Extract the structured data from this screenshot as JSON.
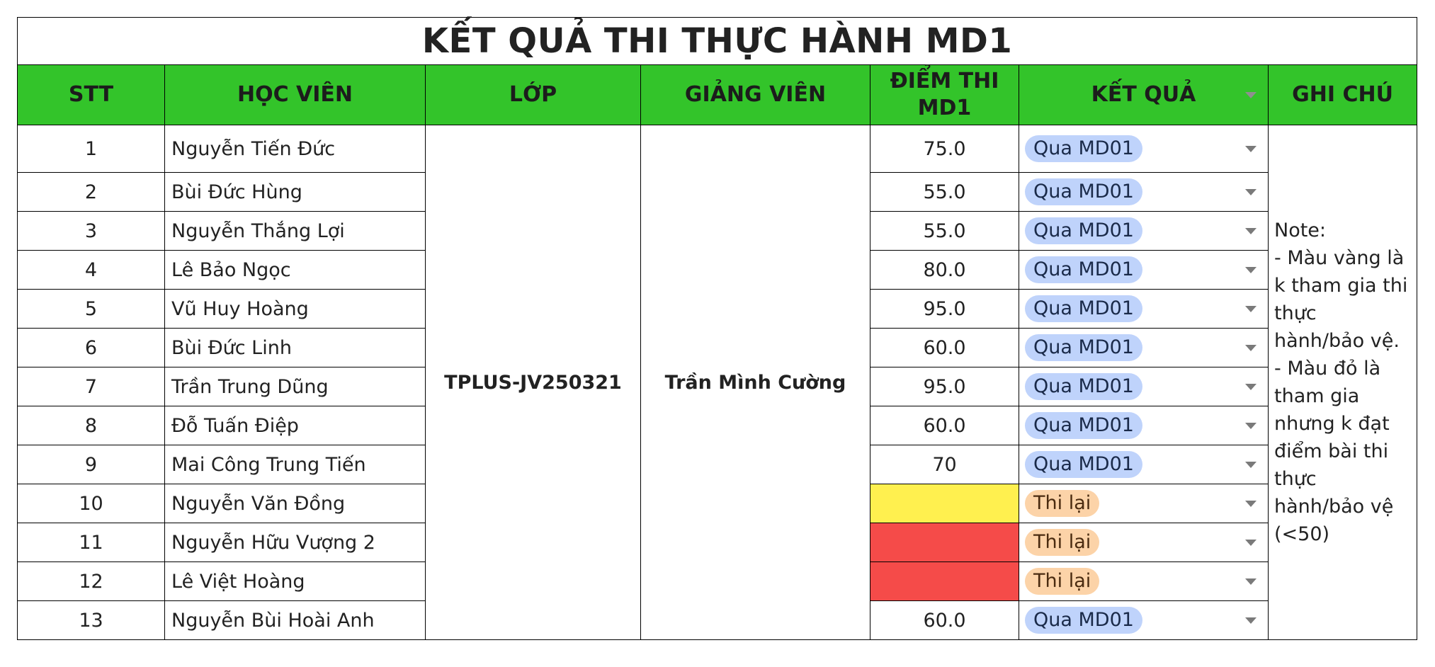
{
  "title": "KẾT QUẢ THI THỰC HÀNH MD1",
  "headers": {
    "stt": "STT",
    "student": "HỌC VIÊN",
    "class": "LỚP",
    "lecturer": "GIẢNG VIÊN",
    "score_line1": "ĐIỂM THI",
    "score_line2": "MD1",
    "result": "KẾT QUẢ",
    "note": "GHI CHÚ"
  },
  "class_name": "TPLUS-JV250321",
  "lecturer_name": "Trần Mình Cường",
  "note": "Note:\n- Màu vàng là k tham gia thi thực hành/bảo vệ.\n- Màu đỏ là tham gia nhưng k đạt điểm bài thi thực hành/bảo vệ (<50)",
  "colors": {
    "header_bg": "#33c42a",
    "pass_chip": "#bfd3fb",
    "retake_chip": "#fcd3a8",
    "absent_yellow": "#fff04f",
    "failed_red": "#f54b49"
  },
  "rows": [
    {
      "stt": "1",
      "name": "Nguyễn Tiến Đức",
      "score": "75.0",
      "result": "Qua MD01"
    },
    {
      "stt": "2",
      "name": "Bùi Đức Hùng",
      "score": "55.0",
      "result": "Qua MD01"
    },
    {
      "stt": "3",
      "name": "Nguyễn Thắng Lợi",
      "score": "55.0",
      "result": "Qua MD01"
    },
    {
      "stt": "4",
      "name": "Lê Bảo Ngọc",
      "score": "80.0",
      "result": "Qua MD01"
    },
    {
      "stt": "5",
      "name": "Vũ Huy Hoàng",
      "score": "95.0",
      "result": "Qua MD01"
    },
    {
      "stt": "6",
      "name": "Bùi Đức Linh",
      "score": "60.0",
      "result": "Qua MD01"
    },
    {
      "stt": "7",
      "name": "Trần Trung Dũng",
      "score": "95.0",
      "result": "Qua MD01"
    },
    {
      "stt": "8",
      "name": "Đỗ Tuấn Điệp",
      "score": "60.0",
      "result": "Qua MD01"
    },
    {
      "stt": "9",
      "name": "Mai Công Trung Tiến",
      "score": "70",
      "result": "Qua MD01"
    },
    {
      "stt": "10",
      "name": "Nguyễn Văn Đồng",
      "score": "",
      "result": "Thi lại"
    },
    {
      "stt": "11",
      "name": "Nguyễn Hữu Vượng 2",
      "score": "",
      "result": "Thi lại"
    },
    {
      "stt": "12",
      "name": "Lê Việt Hoàng",
      "score": "",
      "result": "Thi lại"
    },
    {
      "stt": "13",
      "name": "Nguyễn Bùi Hoài Anh",
      "score": "60.0",
      "result": "Qua MD01"
    }
  ]
}
